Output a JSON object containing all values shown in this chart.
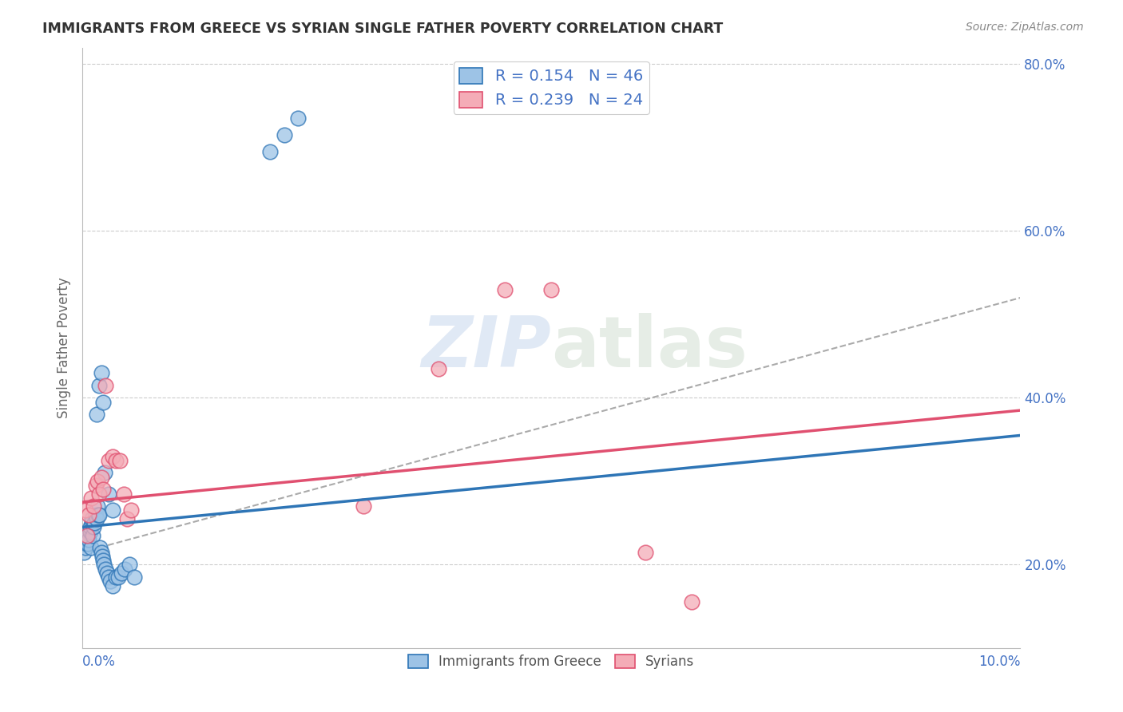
{
  "title": "IMMIGRANTS FROM GREECE VS SYRIAN SINGLE FATHER POVERTY CORRELATION CHART",
  "source": "Source: ZipAtlas.com",
  "ylabel": "Single Father Poverty",
  "watermark_part1": "ZIP",
  "watermark_part2": "atlas",
  "legend_label1": "R = 0.154   N = 46",
  "legend_label2": "R = 0.239   N = 24",
  "legend_bottom1": "Immigrants from Greece",
  "legend_bottom2": "Syrians",
  "color_blue_fill": "#9dc3e6",
  "color_blue_edge": "#2e75b6",
  "color_pink_fill": "#f4acb7",
  "color_pink_edge": "#e05070",
  "color_line_blue": "#2e75b6",
  "color_line_pink": "#e05070",
  "color_line_dash": "#aaaaaa",
  "xlim": [
    0.0,
    0.1
  ],
  "ylim": [
    0.1,
    0.82
  ],
  "xtick_labels": [
    "0.0%",
    "10.0%"
  ],
  "ytick_positions": [
    0.2,
    0.4,
    0.6,
    0.8
  ],
  "ytick_labels": [
    "20.0%",
    "40.0%",
    "60.0%",
    "80.0%"
  ],
  "greece_x": [
    0.0002,
    0.0003,
    0.0004,
    0.0005,
    0.0006,
    0.0006,
    0.0007,
    0.0008,
    0.0008,
    0.0009,
    0.001,
    0.001,
    0.0011,
    0.0012,
    0.0013,
    0.0014,
    0.0015,
    0.0016,
    0.0017,
    0.0018,
    0.0019,
    0.002,
    0.0021,
    0.0022,
    0.0023,
    0.0025,
    0.0026,
    0.0028,
    0.003,
    0.0032,
    0.0015,
    0.0018,
    0.002,
    0.0022,
    0.0024,
    0.0028,
    0.0032,
    0.0036,
    0.0038,
    0.0042,
    0.0045,
    0.005,
    0.0055,
    0.02,
    0.0215,
    0.023
  ],
  "greece_y": [
    0.215,
    0.22,
    0.225,
    0.23,
    0.225,
    0.235,
    0.23,
    0.24,
    0.245,
    0.22,
    0.25,
    0.255,
    0.235,
    0.245,
    0.25,
    0.26,
    0.255,
    0.27,
    0.26,
    0.26,
    0.22,
    0.215,
    0.21,
    0.205,
    0.2,
    0.195,
    0.19,
    0.185,
    0.18,
    0.175,
    0.38,
    0.415,
    0.43,
    0.395,
    0.31,
    0.285,
    0.265,
    0.185,
    0.185,
    0.19,
    0.195,
    0.2,
    0.185,
    0.695,
    0.715,
    0.735
  ],
  "syria_x": [
    0.0003,
    0.0005,
    0.0007,
    0.0009,
    0.0012,
    0.0014,
    0.0016,
    0.0018,
    0.002,
    0.0022,
    0.0025,
    0.0028,
    0.0032,
    0.0036,
    0.004,
    0.0044,
    0.0048,
    0.0052,
    0.03,
    0.038,
    0.045,
    0.05,
    0.06,
    0.065
  ],
  "syria_y": [
    0.265,
    0.235,
    0.26,
    0.28,
    0.27,
    0.295,
    0.3,
    0.285,
    0.305,
    0.29,
    0.415,
    0.325,
    0.33,
    0.325,
    0.325,
    0.285,
    0.255,
    0.265,
    0.27,
    0.435,
    0.53,
    0.53,
    0.215,
    0.155
  ],
  "blue_line_x0": 0.0,
  "blue_line_y0": 0.245,
  "blue_line_x1": 0.1,
  "blue_line_y1": 0.355,
  "pink_line_x0": 0.0,
  "pink_line_y0": 0.275,
  "pink_line_x1": 0.1,
  "pink_line_y1": 0.385,
  "dash_line_x0": 0.0,
  "dash_line_y0": 0.215,
  "dash_line_x1": 0.1,
  "dash_line_y1": 0.52
}
